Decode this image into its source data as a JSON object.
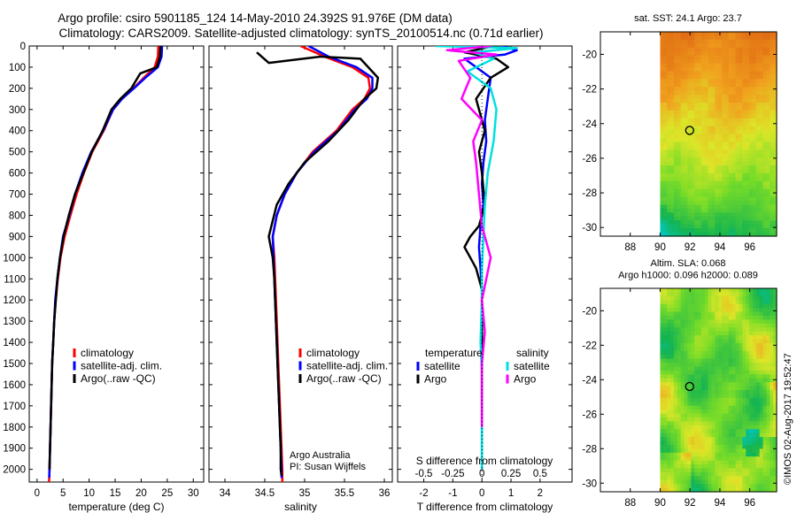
{
  "header": {
    "line1": "Argo profile: csiro 5901185_124 14-May-2010 24.392S 91.976E (DM data)",
    "line2": "Climatology: CARS2009. Satellite-adjusted climatology: synTS_20100514.nc (0.71d earlier)"
  },
  "side_stamp": "©IMOS 02-Aug-2017 19:52:47",
  "colors": {
    "climatology": "#ff0000",
    "satellite": "#0000ff",
    "argo": "#000000",
    "sat_salinity": "#00e0e0",
    "argo_salinity": "#ff00ff"
  },
  "chart_data": [
    {
      "type": "line",
      "id": "temperature",
      "title": "",
      "xlabel": "temperature (deg C)",
      "ylabel": "",
      "xlim": [
        -1.5,
        32
      ],
      "ylim": [
        2060,
        0
      ],
      "xticks": [
        "0",
        "5",
        "10",
        "15",
        "20",
        "25",
        "30"
      ],
      "yticks": [
        "0",
        "100",
        "200",
        "300",
        "400",
        "500",
        "600",
        "700",
        "800",
        "900",
        "1000",
        "1100",
        "1200",
        "1300",
        "1400",
        "1500",
        "1600",
        "1700",
        "1800",
        "1900",
        "2000"
      ],
      "series": [
        {
          "name": "climatology",
          "color_key": "climatology",
          "width": 2.5,
          "x": [
            23.3,
            23.2,
            22.6,
            20.5,
            18.5,
            16.3,
            14.6,
            12.8,
            10.6,
            9.0,
            7.6,
            6.4,
            5.3,
            4.5,
            4.0,
            3.6,
            3.3,
            3.1,
            2.9,
            2.8,
            2.7,
            2.6,
            2.5,
            2.4,
            2.35,
            2.3
          ],
          "y": [
            0,
            50,
            100,
            150,
            200,
            250,
            300,
            400,
            500,
            600,
            700,
            800,
            900,
            1000,
            1100,
            1200,
            1300,
            1400,
            1500,
            1600,
            1700,
            1800,
            1900,
            2000,
            2040,
            2060
          ]
        },
        {
          "name": "satellite-adj. clim.",
          "color_key": "satellite",
          "width": 2.5,
          "x": [
            24.0,
            23.9,
            23.2,
            20.8,
            18.6,
            16.3,
            14.6,
            12.7,
            10.4,
            8.7,
            7.3,
            6.2,
            5.0,
            4.4,
            3.9,
            3.5,
            3.3,
            3.1,
            2.9,
            2.8,
            2.7,
            2.6,
            2.5,
            2.4,
            2.35
          ],
          "y": [
            0,
            50,
            100,
            150,
            200,
            250,
            300,
            400,
            500,
            600,
            700,
            800,
            900,
            1000,
            1100,
            1200,
            1300,
            1400,
            1500,
            1600,
            1700,
            1800,
            1900,
            2000,
            2040
          ]
        },
        {
          "name": "Argo(..raw -QC)",
          "color_key": "argo",
          "width": 2.5,
          "x": [
            23.7,
            23.6,
            23.0,
            19.8,
            18.1,
            16.0,
            14.3,
            12.6,
            10.5,
            8.9,
            7.3,
            6.1,
            5.1,
            4.4,
            3.9,
            3.6,
            3.3,
            3.1,
            2.9,
            2.8,
            2.7,
            2.6,
            2.5,
            2.4
          ],
          "y": [
            0,
            50,
            100,
            130,
            200,
            250,
            300,
            400,
            500,
            600,
            700,
            800,
            900,
            1000,
            1100,
            1200,
            1300,
            1400,
            1500,
            1600,
            1700,
            1800,
            1900,
            2000
          ]
        }
      ],
      "legend": [
        "climatology",
        "satellite-adj. clim.",
        "Argo(..raw -QC)"
      ]
    },
    {
      "type": "line",
      "id": "salinity",
      "xlabel": "salinity",
      "xlim": [
        33.8,
        36.1
      ],
      "ylim": [
        2060,
        0
      ],
      "xticks": [
        "34",
        "34.5",
        "35",
        "35.5",
        "36"
      ],
      "series": [
        {
          "name": "climatology",
          "color_key": "climatology",
          "width": 2.5,
          "x": [
            34.95,
            35.25,
            35.6,
            35.8,
            35.82,
            35.75,
            35.6,
            35.4,
            35.1,
            34.9,
            34.75,
            34.65,
            34.6,
            34.62,
            34.63,
            34.64,
            34.65,
            34.66,
            34.67,
            34.68,
            34.69,
            34.7,
            34.71,
            34.72,
            34.72
          ],
          "y": [
            0,
            50,
            100,
            150,
            200,
            250,
            300,
            400,
            500,
            600,
            700,
            800,
            900,
            1000,
            1100,
            1200,
            1300,
            1400,
            1500,
            1600,
            1700,
            1800,
            1900,
            2000,
            2060
          ]
        },
        {
          "name": "satellite-adj. clim.",
          "color_key": "satellite",
          "width": 2.5,
          "x": [
            35.05,
            35.3,
            35.65,
            35.85,
            35.85,
            35.78,
            35.63,
            35.42,
            35.12,
            34.9,
            34.75,
            34.65,
            34.6,
            34.61,
            34.62,
            34.63,
            34.64,
            34.65,
            34.66,
            34.67,
            34.68,
            34.69,
            34.7,
            34.71,
            34.71
          ],
          "y": [
            0,
            50,
            100,
            150,
            200,
            250,
            300,
            400,
            500,
            600,
            700,
            800,
            900,
            1000,
            1100,
            1200,
            1300,
            1400,
            1500,
            1600,
            1700,
            1800,
            1900,
            2000,
            2040
          ]
        },
        {
          "name": "Argo(..raw -QC)",
          "color_key": "argo",
          "width": 2.5,
          "x": [
            34.4,
            34.55,
            35.2,
            35.7,
            35.92,
            35.9,
            35.75,
            35.55,
            35.3,
            35.0,
            34.8,
            34.65,
            34.55,
            34.6,
            34.62,
            34.63,
            34.64,
            34.65,
            34.66,
            34.67,
            34.68,
            34.69,
            34.7,
            34.7,
            34.71
          ],
          "y": [
            30,
            80,
            50,
            60,
            150,
            200,
            250,
            350,
            450,
            550,
            650,
            750,
            900,
            1000,
            1100,
            1200,
            1300,
            1400,
            1500,
            1600,
            1700,
            1800,
            1900,
            2000,
            2030
          ]
        }
      ],
      "legend": [
        "climatology",
        "satellite-adj. clim.",
        "Argo(..raw -QC)"
      ],
      "annotation": [
        "Argo Australia",
        "PI: Susan Wijffels"
      ]
    },
    {
      "type": "line",
      "id": "differences",
      "xlabel": "T difference from climatology",
      "xlabel_top": "S difference from climatology",
      "xlim": [
        -2.9,
        3.1
      ],
      "ylim": [
        2060,
        0
      ],
      "xticks": [
        "-2",
        "-1",
        "0",
        "1",
        "2"
      ],
      "xticks_secondary": [
        "-0.5",
        "-0.25",
        "0",
        "0.25",
        "0.5"
      ],
      "series": [
        {
          "name": "temperature satellite",
          "color_key": "satellite",
          "width": 2.5,
          "x": [
            0.7,
            1.2,
            0.8,
            -0.6,
            0.3,
            0.2,
            0.1,
            0.15,
            0.05,
            0.0,
            0.05,
            -0.05,
            -0.1,
            -0.05,
            0.0,
            0.0,
            0.0,
            0.0,
            0.0,
            0.0,
            0.0,
            0.0,
            0.0
          ],
          "y": [
            0,
            20,
            40,
            60,
            150,
            250,
            350,
            450,
            550,
            650,
            750,
            850,
            950,
            1050,
            1150,
            1250,
            1350,
            1450,
            1550,
            1650,
            1750,
            1900,
            2000
          ]
        },
        {
          "name": "temperature Argo",
          "color_key": "argo",
          "width": 2.5,
          "x": [
            0.4,
            -0.6,
            0.5,
            0.9,
            0.3,
            -0.2,
            0.1,
            -0.1,
            0.0,
            0.1,
            -0.1,
            -0.4,
            -0.6,
            -0.4,
            -0.2,
            0.0,
            0.0,
            0.0,
            0.0
          ],
          "y": [
            0,
            30,
            60,
            100,
            150,
            250,
            400,
            500,
            600,
            750,
            850,
            900,
            950,
            1000,
            1050,
            1150,
            1300,
            1500,
            1700
          ]
        },
        {
          "name": "salinity satellite",
          "color_key": "sat_salinity",
          "width": 2.5,
          "x": [
            -1.6,
            1.2,
            -0.3,
            0.4,
            -0.5,
            0.3,
            0.5,
            0.4,
            0.2,
            0.1,
            0.05,
            0.0,
            0.0,
            -0.05,
            0.0,
            0.0,
            0.0,
            0.0
          ],
          "y": [
            0,
            10,
            30,
            60,
            120,
            200,
            300,
            450,
            600,
            750,
            900,
            1050,
            1200,
            1400,
            1550,
            1700,
            1850,
            2000
          ]
        },
        {
          "name": "salinity Argo",
          "color_key": "argo_salinity",
          "width": 2.5,
          "x": [
            0.3,
            -1.2,
            0.5,
            -0.8,
            -0.4,
            -0.7,
            0.0,
            -0.3,
            -0.2,
            -0.1,
            0.0,
            0.3,
            0.0,
            0.1,
            0.0,
            0.0,
            0.0
          ],
          "y": [
            0,
            20,
            40,
            70,
            150,
            250,
            350,
            450,
            550,
            700,
            850,
            1000,
            1200,
            1350,
            1500,
            1650,
            1800
          ]
        }
      ],
      "legend_groups": [
        {
          "heading": "temperature",
          "items": [
            "satellite",
            "Argo"
          ]
        },
        {
          "heading": "salinity",
          "items": [
            "satellite",
            "Argo"
          ]
        }
      ]
    },
    {
      "type": "heatmap",
      "id": "sst_map",
      "title": "sat. SST: 24.1  Argo: 23.7",
      "xlim": [
        86,
        97.8
      ],
      "ylim": [
        -30.5,
        -18.7
      ],
      "xticks": [
        "88",
        "90",
        "92",
        "94",
        "96"
      ],
      "yticks": [
        "-20",
        "-22",
        "-24",
        "-26",
        "-28",
        "-30"
      ],
      "data_xmin": 90,
      "marker": {
        "lon": 91.976,
        "lat": -24.392
      },
      "palette": "sst"
    },
    {
      "type": "heatmap",
      "id": "sla_map",
      "title_lines": [
        "Altim. SLA: 0.068",
        "Argo h1000: 0.096  h2000: 0.089"
      ],
      "xlim": [
        86,
        97.8
      ],
      "ylim": [
        -30.5,
        -18.7
      ],
      "xticks": [
        "88",
        "90",
        "92",
        "94",
        "96"
      ],
      "yticks": [
        "-20",
        "-22",
        "-24",
        "-26",
        "-28",
        "-30"
      ],
      "data_xmin": 90,
      "marker": {
        "lon": 91.976,
        "lat": -24.392
      },
      "palette": "sla"
    }
  ]
}
